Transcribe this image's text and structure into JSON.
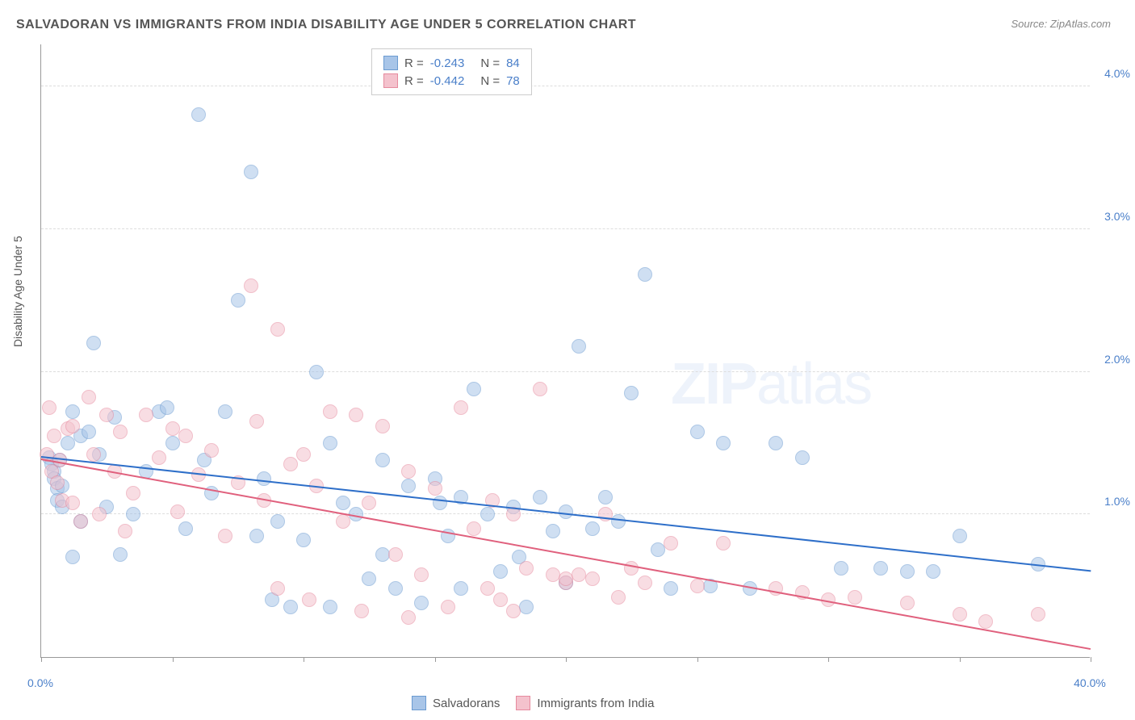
{
  "title": "SALVADORAN VS IMMIGRANTS FROM INDIA DISABILITY AGE UNDER 5 CORRELATION CHART",
  "source": "Source: ZipAtlas.com",
  "ylabel": "Disability Age Under 5",
  "watermark_prefix": "ZIP",
  "watermark_suffix": "atlas",
  "chart": {
    "type": "scatter",
    "xlim": [
      0,
      40
    ],
    "ylim": [
      0,
      4.3
    ],
    "xtick_positions": [
      0,
      5,
      10,
      15,
      20,
      25,
      30,
      35,
      40
    ],
    "xtick_labels_shown": {
      "0": "0.0%",
      "40": "40.0%"
    },
    "ytick_positions": [
      1,
      2,
      3,
      4
    ],
    "ytick_labels": [
      "1.0%",
      "2.0%",
      "3.0%",
      "4.0%"
    ],
    "grid_color": "#dddddd",
    "axis_color": "#999999",
    "background_color": "#ffffff",
    "label_color": "#4a7fc9",
    "title_color": "#555555",
    "title_fontsize": 16,
    "label_fontsize": 14,
    "marker_radius": 9,
    "marker_opacity": 0.55,
    "series": [
      {
        "name": "Salvadorans",
        "fill": "#a8c5e8",
        "stroke": "#6b9bd1",
        "line_color": "#2e6fc9",
        "R": "-0.243",
        "N": "84",
        "trend": {
          "x1": 0,
          "y1": 1.4,
          "x2": 40,
          "y2": 0.6
        },
        "points": [
          [
            0.3,
            1.4
          ],
          [
            0.4,
            1.35
          ],
          [
            0.5,
            1.3
          ],
          [
            0.5,
            1.25
          ],
          [
            0.6,
            1.18
          ],
          [
            0.6,
            1.1
          ],
          [
            0.7,
            1.38
          ],
          [
            0.8,
            1.2
          ],
          [
            0.8,
            1.05
          ],
          [
            1.0,
            1.5
          ],
          [
            1.2,
            1.72
          ],
          [
            1.2,
            0.7
          ],
          [
            1.5,
            1.55
          ],
          [
            1.5,
            0.95
          ],
          [
            1.8,
            1.58
          ],
          [
            2.0,
            2.2
          ],
          [
            2.2,
            1.42
          ],
          [
            2.5,
            1.05
          ],
          [
            2.8,
            1.68
          ],
          [
            3.0,
            0.72
          ],
          [
            3.5,
            1.0
          ],
          [
            4.0,
            1.3
          ],
          [
            4.5,
            1.72
          ],
          [
            4.8,
            1.75
          ],
          [
            5.0,
            1.5
          ],
          [
            5.5,
            0.9
          ],
          [
            6.0,
            3.8
          ],
          [
            6.2,
            1.38
          ],
          [
            6.5,
            1.15
          ],
          [
            7.0,
            1.72
          ],
          [
            7.5,
            2.5
          ],
          [
            8.0,
            3.4
          ],
          [
            8.2,
            0.85
          ],
          [
            8.5,
            1.25
          ],
          [
            8.8,
            0.4
          ],
          [
            9.0,
            0.95
          ],
          [
            9.5,
            0.35
          ],
          [
            10.0,
            0.82
          ],
          [
            10.5,
            2.0
          ],
          [
            11.0,
            1.5
          ],
          [
            11.0,
            0.35
          ],
          [
            11.5,
            1.08
          ],
          [
            12.0,
            1.0
          ],
          [
            12.5,
            0.55
          ],
          [
            13.0,
            1.38
          ],
          [
            13.0,
            0.72
          ],
          [
            13.5,
            0.48
          ],
          [
            14.0,
            1.2
          ],
          [
            14.5,
            0.38
          ],
          [
            15.0,
            1.25
          ],
          [
            15.2,
            1.08
          ],
          [
            15.5,
            0.85
          ],
          [
            16.0,
            1.12
          ],
          [
            16.0,
            0.48
          ],
          [
            16.5,
            1.88
          ],
          [
            17.0,
            1.0
          ],
          [
            17.5,
            0.6
          ],
          [
            18.0,
            1.05
          ],
          [
            18.2,
            0.7
          ],
          [
            18.5,
            0.35
          ],
          [
            19.0,
            1.12
          ],
          [
            19.5,
            0.88
          ],
          [
            20.0,
            1.02
          ],
          [
            20.0,
            0.52
          ],
          [
            20.5,
            2.18
          ],
          [
            21.0,
            0.9
          ],
          [
            21.5,
            1.12
          ],
          [
            22.0,
            0.95
          ],
          [
            22.5,
            1.85
          ],
          [
            23.0,
            2.68
          ],
          [
            23.5,
            0.75
          ],
          [
            24.0,
            0.48
          ],
          [
            25.0,
            1.58
          ],
          [
            25.5,
            0.5
          ],
          [
            26.0,
            1.5
          ],
          [
            27.0,
            0.48
          ],
          [
            28.0,
            1.5
          ],
          [
            29.0,
            1.4
          ],
          [
            30.5,
            0.62
          ],
          [
            32.0,
            0.62
          ],
          [
            33.0,
            0.6
          ],
          [
            34.0,
            0.6
          ],
          [
            35.0,
            0.85
          ],
          [
            38.0,
            0.65
          ]
        ]
      },
      {
        "name": "Immigrants from India",
        "fill": "#f4c2cd",
        "stroke": "#e68a9e",
        "line_color": "#e0607d",
        "R": "-0.442",
        "N": "78",
        "trend": {
          "x1": 0,
          "y1": 1.38,
          "x2": 40,
          "y2": 0.05
        },
        "points": [
          [
            0.2,
            1.42
          ],
          [
            0.3,
            1.75
          ],
          [
            0.4,
            1.3
          ],
          [
            0.5,
            1.55
          ],
          [
            0.6,
            1.22
          ],
          [
            0.7,
            1.38
          ],
          [
            0.8,
            1.1
          ],
          [
            1.0,
            1.6
          ],
          [
            1.2,
            1.62
          ],
          [
            1.2,
            1.08
          ],
          [
            1.5,
            0.95
          ],
          [
            1.8,
            1.82
          ],
          [
            2.0,
            1.42
          ],
          [
            2.2,
            1.0
          ],
          [
            2.5,
            1.7
          ],
          [
            2.8,
            1.3
          ],
          [
            3.0,
            1.58
          ],
          [
            3.2,
            0.88
          ],
          [
            3.5,
            1.15
          ],
          [
            4.0,
            1.7
          ],
          [
            4.5,
            1.4
          ],
          [
            5.0,
            1.6
          ],
          [
            5.2,
            1.02
          ],
          [
            5.5,
            1.55
          ],
          [
            6.0,
            1.28
          ],
          [
            6.5,
            1.45
          ],
          [
            7.0,
            0.85
          ],
          [
            7.5,
            1.22
          ],
          [
            8.0,
            2.6
          ],
          [
            8.2,
            1.65
          ],
          [
            8.5,
            1.1
          ],
          [
            9.0,
            2.3
          ],
          [
            9.0,
            0.48
          ],
          [
            9.5,
            1.35
          ],
          [
            10.0,
            1.42
          ],
          [
            10.2,
            0.4
          ],
          [
            10.5,
            1.2
          ],
          [
            11.0,
            1.72
          ],
          [
            11.5,
            0.95
          ],
          [
            12.0,
            1.7
          ],
          [
            12.2,
            0.32
          ],
          [
            12.5,
            1.08
          ],
          [
            13.0,
            1.62
          ],
          [
            13.5,
            0.72
          ],
          [
            14.0,
            1.3
          ],
          [
            14.0,
            0.28
          ],
          [
            14.5,
            0.58
          ],
          [
            15.0,
            1.18
          ],
          [
            15.5,
            0.35
          ],
          [
            16.0,
            1.75
          ],
          [
            16.5,
            0.9
          ],
          [
            17.0,
            0.48
          ],
          [
            17.2,
            1.1
          ],
          [
            17.5,
            0.4
          ],
          [
            18.0,
            1.0
          ],
          [
            18.0,
            0.32
          ],
          [
            18.5,
            0.62
          ],
          [
            19.0,
            1.88
          ],
          [
            19.5,
            0.58
          ],
          [
            20.0,
            0.52
          ],
          [
            20.0,
            0.55
          ],
          [
            20.5,
            0.58
          ],
          [
            21.0,
            0.55
          ],
          [
            21.5,
            1.0
          ],
          [
            22.0,
            0.42
          ],
          [
            22.5,
            0.62
          ],
          [
            23.0,
            0.52
          ],
          [
            24.0,
            0.8
          ],
          [
            25.0,
            0.5
          ],
          [
            26.0,
            0.8
          ],
          [
            28.0,
            0.48
          ],
          [
            29.0,
            0.45
          ],
          [
            30.0,
            0.4
          ],
          [
            31.0,
            0.42
          ],
          [
            33.0,
            0.38
          ],
          [
            35.0,
            0.3
          ],
          [
            36.0,
            0.25
          ],
          [
            38.0,
            0.3
          ]
        ]
      }
    ]
  },
  "legend_bottom": [
    {
      "swatch_fill": "#a8c5e8",
      "swatch_stroke": "#6b9bd1",
      "label": "Salvadorans"
    },
    {
      "swatch_fill": "#f4c2cd",
      "swatch_stroke": "#e68a9e",
      "label": "Immigrants from India"
    }
  ]
}
